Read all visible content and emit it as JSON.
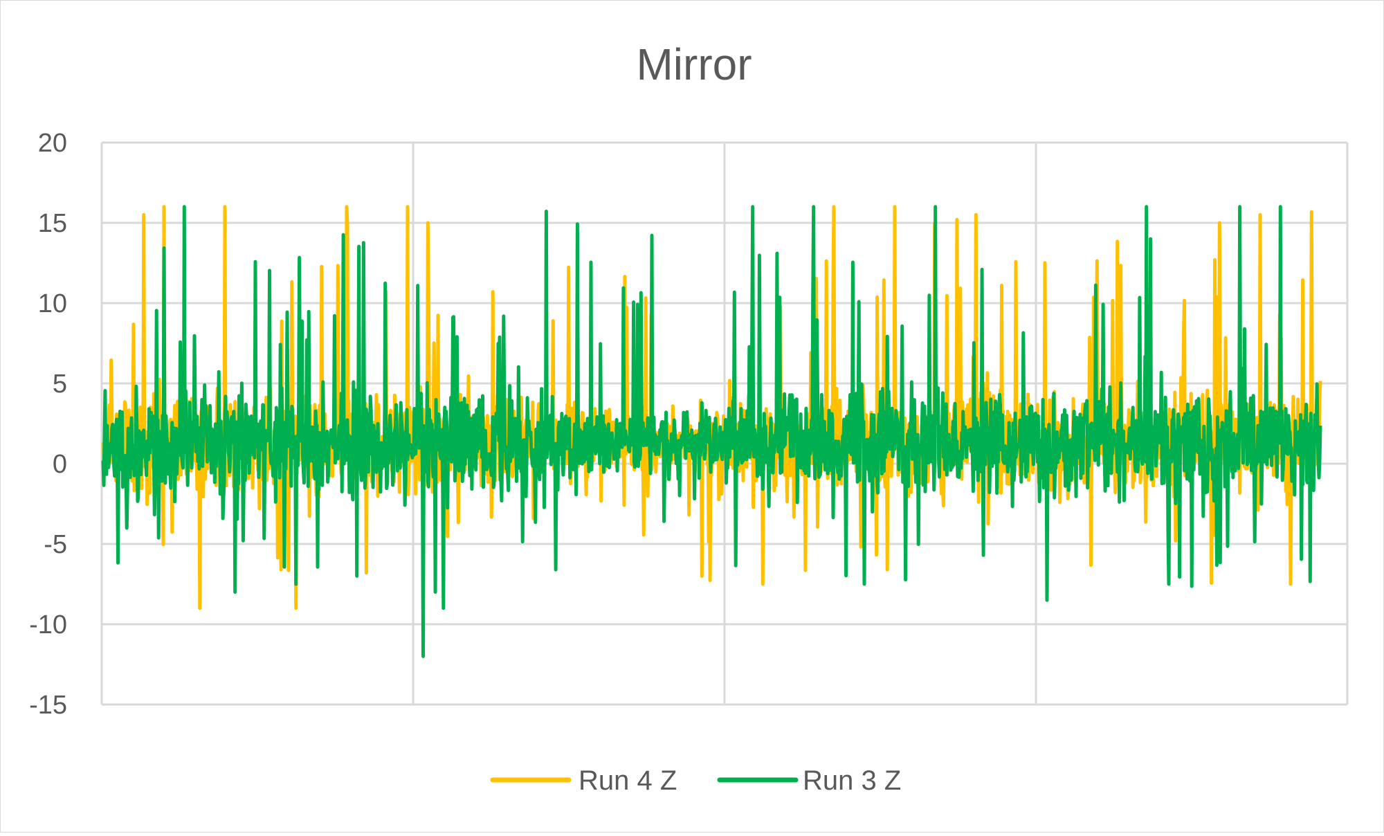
{
  "chart_data": {
    "type": "line",
    "title": "Mirror",
    "xlabel": "",
    "ylabel": "",
    "ylim": [
      -15,
      20
    ],
    "yticks": [
      "20",
      "15",
      "10",
      "5",
      "0",
      "-5",
      "-10",
      "-15"
    ],
    "x_gridline_count": 4,
    "grid": true,
    "legend_position": "bottom",
    "x_range": [
      0,
      1200
    ],
    "series": [
      {
        "name": "Run 4 Z",
        "color": "#FFC000",
        "peaks": [
          {
            "x": 40,
            "max": 15.5,
            "min": -7.5
          },
          {
            "x": 60,
            "max": 16,
            "min": -8.5
          },
          {
            "x": 95,
            "max": 16,
            "min": -9
          },
          {
            "x": 120,
            "max": 16,
            "min": -8
          },
          {
            "x": 190,
            "max": 16,
            "min": -9
          },
          {
            "x": 240,
            "max": 16,
            "min": -7
          },
          {
            "x": 300,
            "max": 16,
            "min": -10.5
          },
          {
            "x": 320,
            "max": 15,
            "min": -9.5
          },
          {
            "x": 590,
            "max": 15.5,
            "min": -7
          },
          {
            "x": 650,
            "max": 16,
            "min": -7.5
          },
          {
            "x": 720,
            "max": 16,
            "min": -8
          },
          {
            "x": 780,
            "max": 16,
            "min": -9.5
          },
          {
            "x": 860,
            "max": 15.5,
            "min": -7
          },
          {
            "x": 1100,
            "max": 15,
            "min": -6.5
          },
          {
            "x": 1140,
            "max": 15.5,
            "min": -7
          },
          {
            "x": 1170,
            "max": 15,
            "min": -7.5
          }
        ]
      },
      {
        "name": "Run 3 Z",
        "color": "#00B050",
        "peaks": [
          {
            "x": 80,
            "max": 16,
            "min": -7.5
          },
          {
            "x": 130,
            "max": 16,
            "min": -8
          },
          {
            "x": 190,
            "max": 16,
            "min": -7.5
          },
          {
            "x": 250,
            "max": 16,
            "min": -7
          },
          {
            "x": 315,
            "max": 16,
            "min": -12
          },
          {
            "x": 335,
            "max": 16,
            "min": -9
          },
          {
            "x": 640,
            "max": 16,
            "min": -7
          },
          {
            "x": 700,
            "max": 16,
            "min": -8.5
          },
          {
            "x": 750,
            "max": 16,
            "min": -7.5
          },
          {
            "x": 820,
            "max": 16,
            "min": -7
          },
          {
            "x": 930,
            "max": 16,
            "min": -8.5
          },
          {
            "x": 1050,
            "max": 16,
            "min": -7.5
          },
          {
            "x": 1120,
            "max": 16,
            "min": -7
          },
          {
            "x": 1160,
            "max": 16,
            "min": -7.5
          }
        ]
      }
    ]
  }
}
